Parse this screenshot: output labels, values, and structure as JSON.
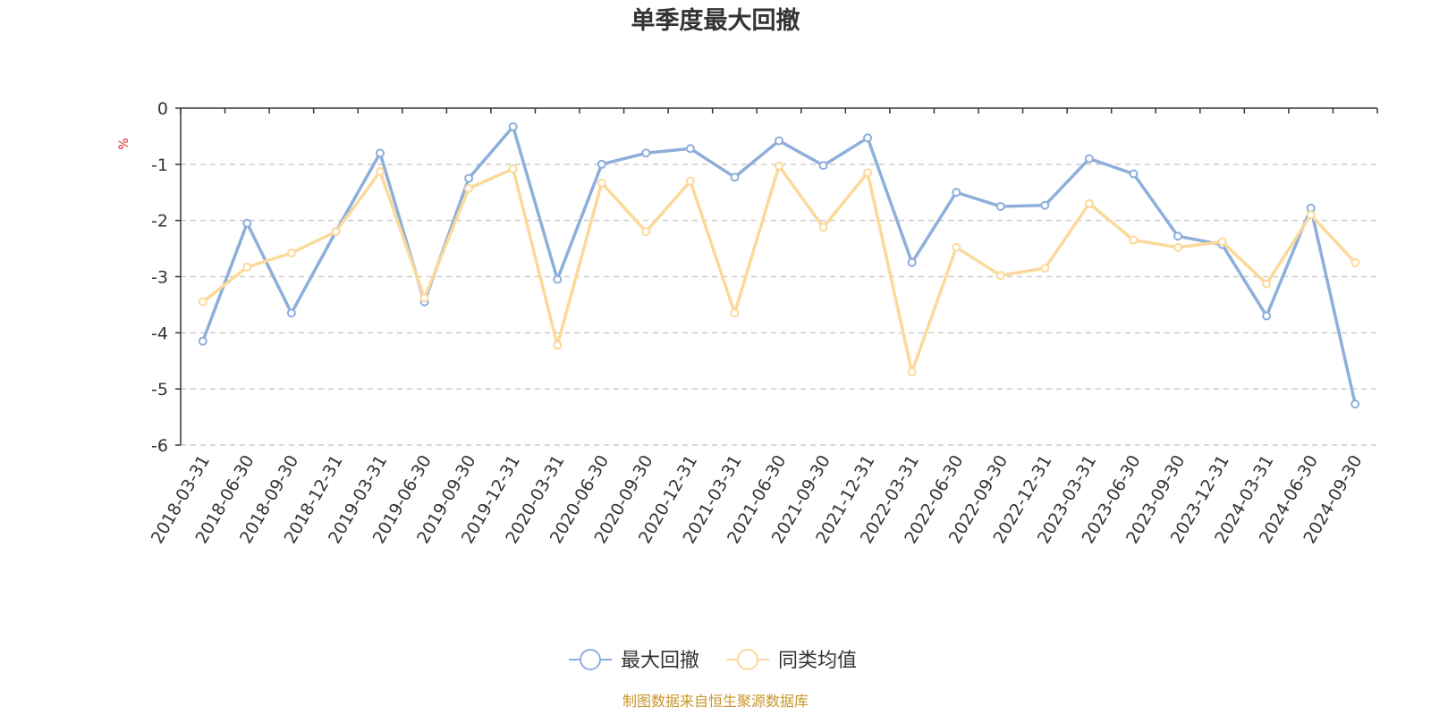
{
  "chart_data": {
    "type": "line",
    "title": "单季度最大回撤",
    "unit_label": "%",
    "ylim": [
      -6,
      0
    ],
    "yticks": [
      0,
      -1,
      -2,
      -3,
      -4,
      -5,
      -6
    ],
    "grid": "y-dashed",
    "legend_position": "bottom-center",
    "categories": [
      "2018-03-31",
      "2018-06-30",
      "2018-09-30",
      "2018-12-31",
      "2019-03-31",
      "2019-06-30",
      "2019-09-30",
      "2019-12-31",
      "2020-03-31",
      "2020-06-30",
      "2020-09-30",
      "2020-12-31",
      "2021-03-31",
      "2021-06-30",
      "2021-09-30",
      "2021-12-31",
      "2022-03-31",
      "2022-06-30",
      "2022-09-30",
      "2022-12-31",
      "2023-03-31",
      "2023-06-30",
      "2023-09-30",
      "2023-12-31",
      "2024-03-31",
      "2024-06-30",
      "2024-09-30"
    ],
    "series": [
      {
        "name": "最大回撤",
        "color": "#8eaedb",
        "values": [
          -4.15,
          -2.05,
          -3.65,
          -2.2,
          -0.8,
          -3.45,
          -1.25,
          -0.33,
          -3.05,
          -1.0,
          -0.8,
          -0.72,
          -1.23,
          -0.58,
          -1.02,
          -0.53,
          -2.75,
          -1.5,
          -1.75,
          -1.73,
          -0.9,
          -1.17,
          -2.28,
          -2.43,
          -3.7,
          -1.78,
          -5.27
        ]
      },
      {
        "name": "同类均值",
        "color": "#fbd99a",
        "values": [
          -3.45,
          -2.83,
          -2.58,
          -2.2,
          -1.13,
          -3.38,
          -1.43,
          -1.08,
          -4.22,
          -1.33,
          -2.2,
          -1.3,
          -3.65,
          -1.03,
          -2.12,
          -1.15,
          -4.7,
          -2.48,
          -2.98,
          -2.85,
          -1.7,
          -2.35,
          -2.48,
          -2.38,
          -3.13,
          -1.9,
          -2.75
        ]
      }
    ]
  },
  "source_note": "制图数据来自恒生聚源数据库"
}
